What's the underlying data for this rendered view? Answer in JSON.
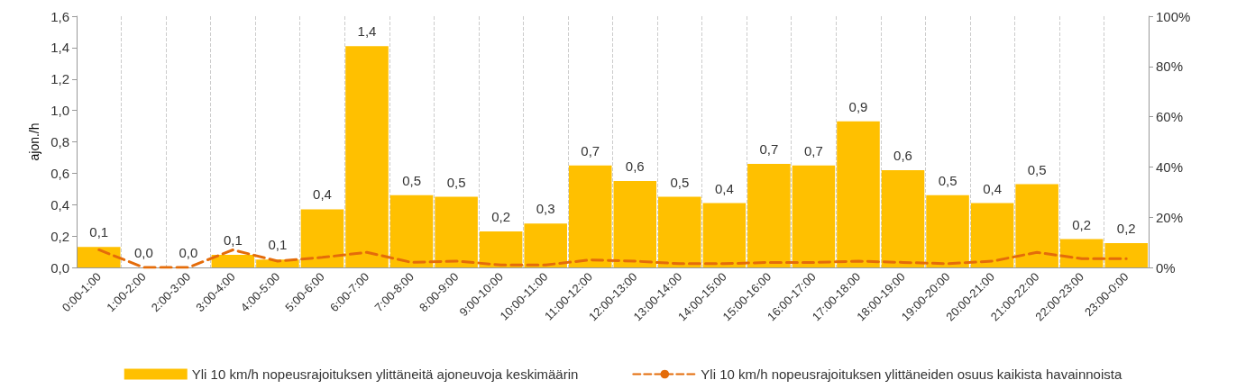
{
  "chart_data": {
    "type": "bar",
    "ylabel": "ajon./h",
    "categories": [
      "0:00-1:00",
      "1:00-2:00",
      "2:00-3:00",
      "3:00-4:00",
      "4:00-5:00",
      "5:00-6:00",
      "6:00-7:00",
      "7:00-8:00",
      "8:00-9:00",
      "9:00-10:00",
      "10:00-11:00",
      "11:00-12:00",
      "12:00-13:00",
      "13:00-14:00",
      "14:00-15:00",
      "15:00-16:00",
      "16:00-17:00",
      "17:00-18:00",
      "18:00-19:00",
      "19:00-20:00",
      "20:00-21:00",
      "21:00-22:00",
      "22:00-23:00",
      "23:00-0:00"
    ],
    "series": [
      {
        "name": "Yli 10 km/h nopeusrajoituksen ylittäneitä ajoneuvoja keskimäärin",
        "color": "#ffc000",
        "values": [
          0.13,
          0.0,
          0.0,
          0.08,
          0.05,
          0.37,
          1.41,
          0.46,
          0.45,
          0.23,
          0.28,
          0.65,
          0.55,
          0.45,
          0.41,
          0.66,
          0.65,
          0.93,
          0.62,
          0.46,
          0.41,
          0.53,
          0.18,
          0.155
        ],
        "value_labels": [
          "0,1",
          "0,0",
          "0,0",
          "0,1",
          "0,1",
          "0,4",
          "1,4",
          "0,5",
          "0,5",
          "0,2",
          "0,3",
          "0,7",
          "0,6",
          "0,5",
          "0,4",
          "0,7",
          "0,7",
          "0,9",
          "0,6",
          "0,5",
          "0,4",
          "0,5",
          "0,2",
          "0,2"
        ]
      },
      {
        "name": "Yli 10 km/h nopeusrajoituksen ylittäneiden osuus kaikista havainnoista",
        "type": "line",
        "axis": "y2",
        "color": "#e46c0a",
        "line_style": "dashed",
        "marker": "none",
        "values": [
          7,
          0,
          0,
          7,
          2.5,
          4,
          6,
          2,
          2.5,
          1,
          1,
          3,
          2.5,
          1.5,
          1.5,
          2,
          2,
          2.5,
          2,
          1.5,
          2.5,
          6,
          3.5,
          3.5
        ]
      }
    ],
    "ylim": [
      0,
      1.6
    ],
    "yticks": [
      {
        "value": 0,
        "label": "0,0"
      },
      {
        "value": 0.2,
        "label": "0,2"
      },
      {
        "value": 0.4,
        "label": "0,4"
      },
      {
        "value": 0.6,
        "label": "0,6"
      },
      {
        "value": 0.8,
        "label": "0,8"
      },
      {
        "value": 1.0,
        "label": "1,0"
      },
      {
        "value": 1.2,
        "label": "1,2"
      },
      {
        "value": 1.4,
        "label": "1,4"
      },
      {
        "value": 1.6,
        "label": "1,6"
      }
    ],
    "y2lim": [
      0,
      100
    ],
    "y2ticks": [
      {
        "value": 0,
        "label": "0%"
      },
      {
        "value": 20,
        "label": "20%"
      },
      {
        "value": 40,
        "label": "40%"
      },
      {
        "value": 60,
        "label": "60%"
      },
      {
        "value": 80,
        "label": "80%"
      },
      {
        "value": 100,
        "label": "100%"
      }
    ],
    "grid": "x",
    "legend": "bottom"
  }
}
